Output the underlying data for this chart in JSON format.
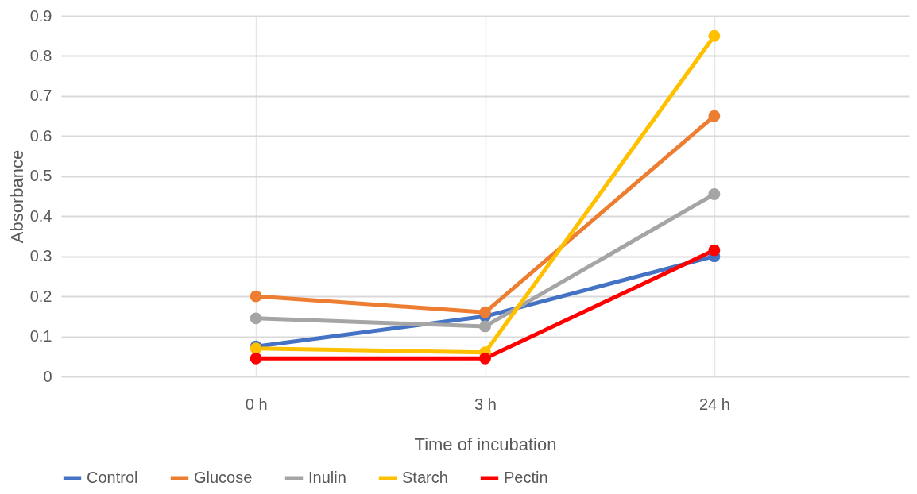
{
  "chart_data": {
    "type": "line",
    "xlabel": "Time of incubation",
    "ylabel": "Absorbance",
    "categories": [
      "0 h",
      "3 h",
      "24 h"
    ],
    "series": [
      {
        "name": "Control",
        "color": "#4472c4",
        "values": [
          0.075,
          0.15,
          0.3
        ]
      },
      {
        "name": "Glucose",
        "color": "#ed7d31",
        "values": [
          0.2,
          0.16,
          0.65
        ]
      },
      {
        "name": "Inulin",
        "color": "#a5a5a5",
        "values": [
          0.145,
          0.125,
          0.455
        ]
      },
      {
        "name": "Starch",
        "color": "#ffc000",
        "values": [
          0.07,
          0.06,
          0.85
        ]
      },
      {
        "name": "Pectin",
        "color": "#ff0000",
        "values": [
          0.045,
          0.045,
          0.315
        ]
      }
    ],
    "ylim": [
      0,
      0.9
    ],
    "yticks": [
      0,
      0.1,
      0.2,
      0.3,
      0.4,
      0.5,
      0.6,
      0.7,
      0.8,
      0.9
    ],
    "grid": true,
    "legend": "bottom",
    "marker": "circle",
    "line_style": "solid"
  }
}
